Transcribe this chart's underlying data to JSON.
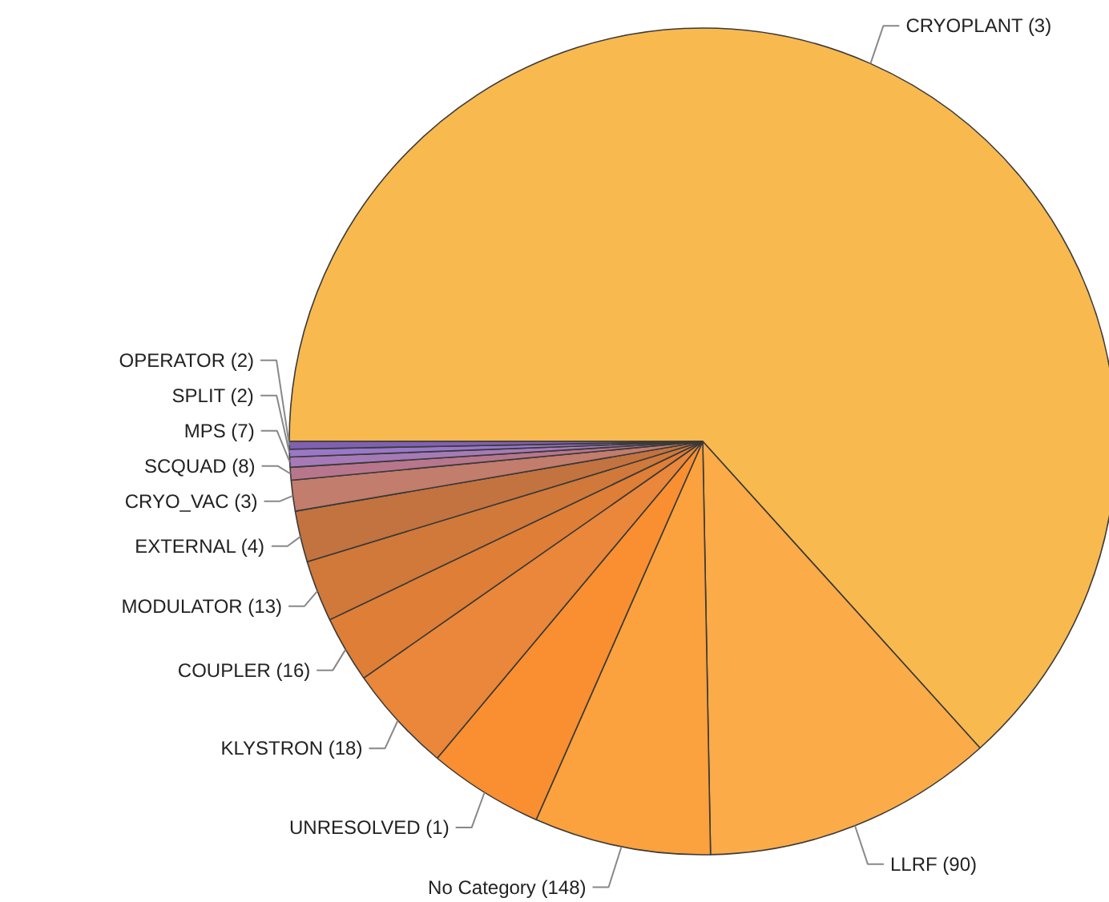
{
  "chart_data": {
    "type": "pie",
    "categories": [
      "CRYOPLANT (3)",
      "LLRF (90)",
      "No Category (148)",
      "UNRESOLVED (1)",
      "KLYSTRON (18)",
      "COUPLER (16)",
      "MODULATOR (13)",
      "EXTERNAL (4)",
      "CRYO_VAC (3)",
      "SCQUAD (8)",
      "MPS (7)",
      "SPLIT (2)",
      "OPERATOR (2)"
    ],
    "values": [
      63.3,
      11.4,
      6.9,
      4.5,
      4.2,
      2.6,
      2.4,
      2.0,
      1.2,
      0.5,
      0.4,
      0.3,
      0.3
    ],
    "colors": [
      "#f8b94f",
      "#fbab47",
      "#fba13d",
      "#f98f30",
      "#ea873a",
      "#df7e36",
      "#d0793a",
      "#c3733f",
      "#c27d6c",
      "#b8768c",
      "#a67ab7",
      "#9a78c8",
      "#7f61b2"
    ]
  }
}
